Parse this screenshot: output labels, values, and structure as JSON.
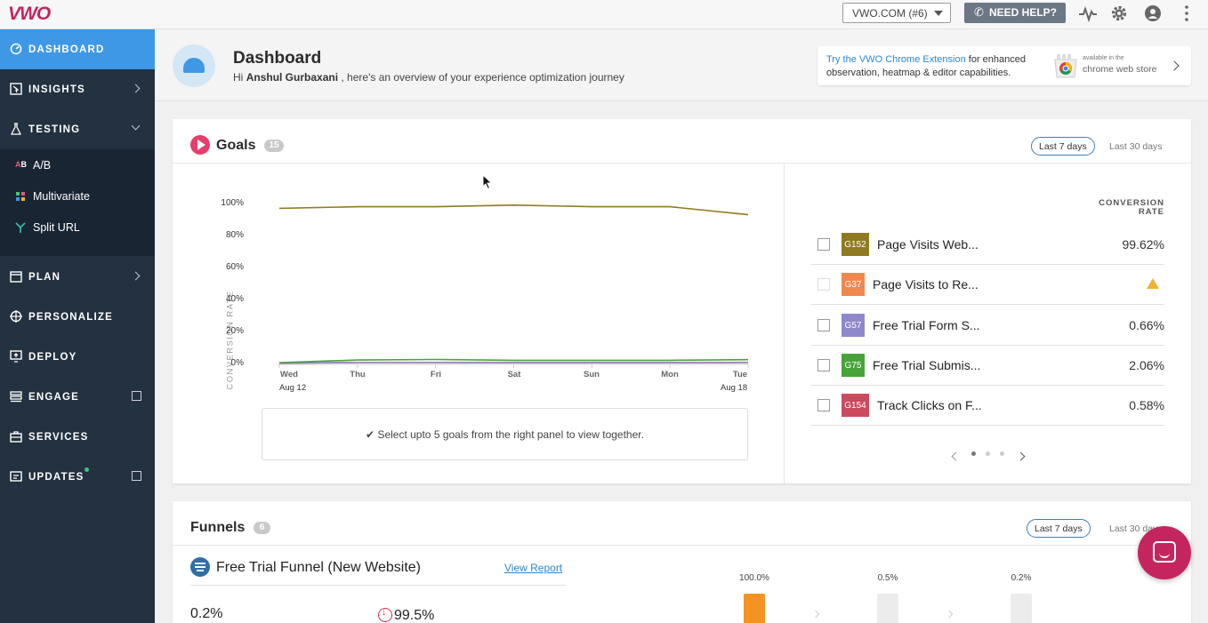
{
  "topbar": {
    "logo": "VWO",
    "account": "VWO.COM (#6)",
    "help": "NEED HELP?",
    "icons": [
      "activity-icon",
      "gear-icon",
      "user-icon",
      "more-icon"
    ]
  },
  "sidebar": {
    "items": [
      {
        "label": "DASHBOARD"
      },
      {
        "label": "INSIGHTS"
      },
      {
        "label": "TESTING"
      },
      {
        "label": "PLAN"
      },
      {
        "label": "PERSONALIZE"
      },
      {
        "label": "DEPLOY"
      },
      {
        "label": "ENGAGE"
      },
      {
        "label": "SERVICES"
      },
      {
        "label": "UPDATES"
      }
    ],
    "testing_sub": [
      {
        "label": "A/B"
      },
      {
        "label": "Multivariate"
      },
      {
        "label": "Split URL"
      }
    ]
  },
  "header": {
    "title": "Dashboard",
    "greeting_prefix": "Hi",
    "user": "Anshul Gurbaxani",
    "greeting_suffix": ", here's an overview of your experience optimization journey",
    "ext_link": "Try the VWO Chrome Extension",
    "ext_text1": "for enhanced",
    "ext_text2": "observation, heatmap & editor capabilities.",
    "cws_small": "available in the",
    "cws_big": "chrome web store"
  },
  "goals": {
    "title": "Goals",
    "count": "15",
    "range_active": "Last 7 days",
    "range_other": "Last 30 days",
    "hint": "Select upto 5 goals from the right panel to view together.",
    "cr_header": "CONVERSION RATE",
    "rows": [
      {
        "tag": "G152",
        "name": "Page Visits Web...",
        "value": "99.62%",
        "color": "#8f7a20"
      },
      {
        "tag": "G37",
        "name": "Page Visits to Re...",
        "value": "",
        "color": "#f0884e"
      },
      {
        "tag": "G57",
        "name": "Free Trial Form S...",
        "value": "0.66%",
        "color": "#8f88cc"
      },
      {
        "tag": "G75",
        "name": "Free Trial Submis...",
        "value": "2.06%",
        "color": "#47a33a"
      },
      {
        "tag": "G154",
        "name": "Track Clicks on F...",
        "value": "0.58%",
        "color": "#cc4a5e"
      }
    ]
  },
  "chart_data": {
    "type": "line",
    "ylabel": "CONVERSION RATE",
    "ylim": [
      0,
      100
    ],
    "yticks": [
      "100%",
      "80%",
      "60%",
      "40%",
      "20%",
      "0%"
    ],
    "categories": [
      "Wed",
      "Thu",
      "Fri",
      "Sat",
      "Sun",
      "Mon",
      "Tue"
    ],
    "date_start": "Aug 12",
    "date_end": "Aug 18",
    "series": [
      {
        "name": "G152",
        "color": "#8f7a20",
        "values": [
          97,
          98,
          98,
          99,
          98,
          98,
          93
        ]
      },
      {
        "name": "G75",
        "color": "#47a33a",
        "values": [
          0.5,
          2.2,
          2.5,
          2.0,
          2.0,
          2.0,
          2.4
        ]
      },
      {
        "name": "G57",
        "color": "#8f88cc",
        "values": [
          0.3,
          0.7,
          0.7,
          0.6,
          0.6,
          0.6,
          0.7
        ]
      },
      {
        "name": "G154",
        "color": "#cc4a5e",
        "values": [
          0.2,
          0.6,
          0.6,
          0.5,
          0.5,
          0.5,
          0.6
        ]
      }
    ]
  },
  "funnels": {
    "title": "Funnels",
    "count": "6",
    "range_active": "Last 7 days",
    "range_other": "Last 30 days",
    "funnel_name": "Free Trial Funnel (New Website)",
    "view_report": "View Report",
    "rate": "0.2%",
    "drop": "99.5%",
    "bars": [
      {
        "label": "100.0%",
        "value": 100,
        "color": "#f29324"
      },
      {
        "label": "0.5%",
        "value": 0.5,
        "color": "#ececec"
      },
      {
        "label": "0.2%",
        "value": 0.2,
        "color": "#ececec"
      }
    ]
  }
}
